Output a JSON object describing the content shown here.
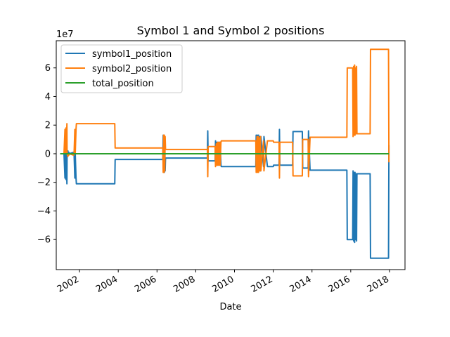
{
  "chart_data": {
    "type": "line",
    "title": "Symbol 1 and Symbol 2 positions",
    "xlabel": "Date",
    "ylabel": "",
    "y_scale_label": "1e7",
    "x_ticks": [
      "2002",
      "2004",
      "2006",
      "2008",
      "2010",
      "2012",
      "2014",
      "2016",
      "2018"
    ],
    "y_ticks": [
      -6,
      -4,
      -2,
      0,
      2,
      4,
      6
    ],
    "xlim": [
      2000.8,
      2018.8
    ],
    "ylim": [
      -8.1,
      7.9
    ],
    "grid": false,
    "legend_position": "top-left",
    "series": [
      {
        "name": "symbol1_position",
        "color": "#1f77b4",
        "x": [
          2001.0,
          2001.2,
          2001.25,
          2001.26,
          2001.3,
          2001.31,
          2001.35,
          2001.36,
          2001.4,
          2001.42,
          2001.45,
          2001.46,
          2001.7,
          2001.72,
          2001.76,
          2001.78,
          2001.82,
          2001.84,
          2003.82,
          2003.84,
          2006.3,
          2006.32,
          2006.34,
          2006.36,
          2006.38,
          2006.4,
          2006.42,
          2006.44,
          2006.46,
          2008.6,
          2008.62,
          2008.64,
          2009.0,
          2009.02,
          2009.06,
          2009.08,
          2009.12,
          2009.14,
          2009.18,
          2009.2,
          2009.24,
          2009.26,
          2009.3,
          2009.32,
          2009.4,
          2011.1,
          2011.12,
          2011.16,
          2011.18,
          2011.22,
          2011.24,
          2011.28,
          2011.3,
          2011.34,
          2011.36,
          2011.5,
          2011.52,
          2011.7,
          2011.72,
          2012.0,
          2012.02,
          2012.3,
          2012.32,
          2012.34,
          2012.36,
          2013.0,
          2013.02,
          2013.5,
          2013.52,
          2013.8,
          2013.82,
          2013.9,
          2015.8,
          2015.82,
          2016.1,
          2016.12,
          2016.15,
          2016.17,
          2016.2,
          2016.22,
          2016.25,
          2016.27,
          2016.3,
          2016.32,
          2016.36,
          2016.38,
          2017.0,
          2017.02,
          2017.95,
          2017.97
        ],
        "y": [
          0,
          0,
          -1.7,
          0,
          -1.8,
          0,
          -2.1,
          0,
          0.2,
          0,
          0.1,
          0,
          0.1,
          0,
          -1.7,
          0,
          -1.7,
          -2.1,
          -2.1,
          -0.4,
          -0.4,
          1.3,
          -1.3,
          1.3,
          -1.3,
          1.2,
          -1.2,
          -0.3,
          -0.3,
          -0.3,
          1.6,
          -0.5,
          -0.5,
          0.9,
          -0.7,
          0.8,
          -0.8,
          0.8,
          -0.8,
          0.8,
          -0.8,
          0.8,
          -0.8,
          -0.9,
          -0.9,
          -0.9,
          1.3,
          -1.2,
          1.3,
          -1.2,
          1.3,
          -1.1,
          1.2,
          -1.2,
          1.2,
          -0.9,
          1.2,
          -0.9,
          -0.9,
          -0.9,
          -0.8,
          -0.8,
          1.7,
          -0.8,
          -0.8,
          -0.8,
          1.55,
          1.55,
          -1.0,
          -1.0,
          1.6,
          -1.15,
          -1.15,
          -6.0,
          -6.0,
          -1.2,
          -6.1,
          -1.3,
          -6.2,
          -1.3,
          -6.0,
          -1.4,
          -6.1,
          -1.4,
          -1.4,
          -1.4,
          -1.4,
          -7.3,
          -7.3,
          0.6
        ]
      },
      {
        "name": "symbol2_position",
        "color": "#ff7f0e",
        "x": [
          2001.0,
          2001.2,
          2001.25,
          2001.26,
          2001.3,
          2001.31,
          2001.35,
          2001.36,
          2001.4,
          2001.42,
          2001.45,
          2001.46,
          2001.7,
          2001.72,
          2001.76,
          2001.78,
          2001.82,
          2001.84,
          2003.82,
          2003.84,
          2006.3,
          2006.32,
          2006.34,
          2006.36,
          2006.38,
          2006.4,
          2006.42,
          2006.44,
          2006.46,
          2008.6,
          2008.62,
          2008.64,
          2009.0,
          2009.02,
          2009.06,
          2009.08,
          2009.12,
          2009.14,
          2009.18,
          2009.2,
          2009.24,
          2009.26,
          2009.3,
          2009.32,
          2009.4,
          2011.1,
          2011.12,
          2011.16,
          2011.18,
          2011.22,
          2011.24,
          2011.28,
          2011.3,
          2011.34,
          2011.36,
          2011.5,
          2011.52,
          2011.7,
          2011.72,
          2012.0,
          2012.02,
          2012.3,
          2012.32,
          2012.34,
          2012.36,
          2013.0,
          2013.02,
          2013.5,
          2013.52,
          2013.8,
          2013.82,
          2013.9,
          2015.8,
          2015.82,
          2016.1,
          2016.12,
          2016.15,
          2016.17,
          2016.2,
          2016.22,
          2016.25,
          2016.27,
          2016.3,
          2016.32,
          2016.36,
          2016.38,
          2017.0,
          2017.02,
          2017.95,
          2017.97
        ],
        "y": [
          0,
          0,
          1.7,
          0,
          1.8,
          0,
          2.1,
          0,
          -0.2,
          0,
          -0.1,
          0,
          -0.1,
          0,
          1.7,
          0,
          1.7,
          2.1,
          2.1,
          0.4,
          0.4,
          -1.3,
          1.3,
          -1.3,
          1.3,
          -1.2,
          1.2,
          0.3,
          0.3,
          0.3,
          -1.6,
          0.5,
          0.5,
          -0.9,
          0.7,
          -0.8,
          0.8,
          -0.8,
          0.8,
          -0.8,
          0.8,
          -0.8,
          0.8,
          0.9,
          0.9,
          0.9,
          -1.3,
          1.2,
          -1.3,
          1.2,
          -1.3,
          1.1,
          -1.2,
          1.2,
          -1.2,
          0.9,
          -1.2,
          0.9,
          0.9,
          0.9,
          0.8,
          0.8,
          -1.7,
          0.8,
          0.8,
          0.8,
          -1.55,
          -1.55,
          1.0,
          1.0,
          -1.6,
          1.15,
          1.15,
          6.0,
          6.0,
          1.2,
          6.1,
          1.3,
          6.2,
          1.3,
          6.0,
          1.4,
          6.1,
          1.4,
          1.4,
          1.4,
          1.4,
          7.3,
          7.3,
          -0.6
        ]
      },
      {
        "name": "total_position",
        "color": "#2ca02c",
        "x": [
          2001.0,
          2017.97
        ],
        "y": [
          0,
          0
        ]
      }
    ]
  }
}
